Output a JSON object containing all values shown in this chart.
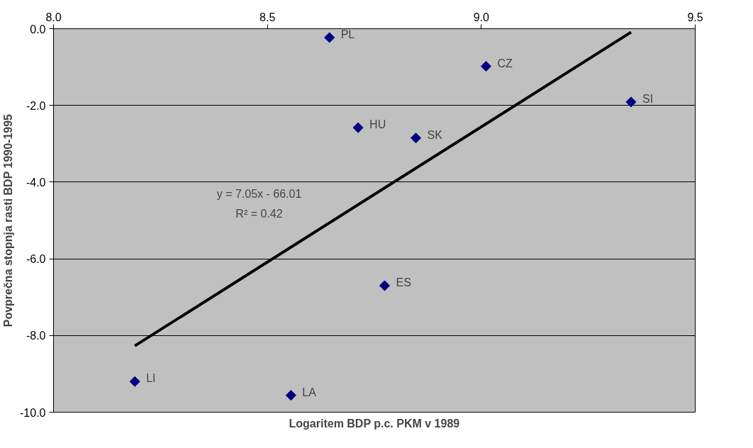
{
  "chart_data": {
    "type": "scatter",
    "xlabel": "Logaritem BDP p.c. PKM v 1989",
    "ylabel": "Povprečna stopnja rasti BDP 1990-1995",
    "xlim": [
      8.0,
      9.5
    ],
    "xticks": [
      {
        "value": 8.0,
        "label": "8.0"
      },
      {
        "value": 8.5,
        "label": "8.5"
      },
      {
        "value": 9.0,
        "label": "9.0"
      },
      {
        "value": 9.5,
        "label": "9.5"
      }
    ],
    "ylim": [
      -10.0,
      0.0
    ],
    "yticks": [
      {
        "value": -10,
        "label": "-10.0"
      },
      {
        "value": -8,
        "label": "-8.0"
      },
      {
        "value": -6,
        "label": "-6.0"
      },
      {
        "value": -4,
        "label": "-4.0"
      },
      {
        "value": -2,
        "label": "-2.0"
      },
      {
        "value": 0,
        "label": "0.0"
      }
    ],
    "grid": "y",
    "series": [
      {
        "color": "#000080",
        "marker": "diamond",
        "x": [
          8.645,
          9.011,
          9.35,
          8.712,
          8.847,
          8.774,
          8.19,
          8.555
        ],
        "values": [
          -0.23,
          -0.98,
          -1.91,
          -2.58,
          -2.85,
          -6.7,
          -9.2,
          -9.56
        ]
      },
      {
        "type": "line",
        "color": "#000000",
        "marker": "none",
        "x": [
          8.19,
          9.35
        ],
        "values": [
          -8.27,
          -0.09
        ]
      }
    ],
    "annotations": [
      {
        "text": "PL",
        "x": 8.645,
        "y": -0.23
      },
      {
        "text": "CZ",
        "x": 9.011,
        "y": -0.98
      },
      {
        "text": "SI",
        "x": 9.35,
        "y": -1.91
      },
      {
        "text": "HU",
        "x": 8.712,
        "y": -2.58
      },
      {
        "text": "SK",
        "x": 8.847,
        "y": -2.85
      },
      {
        "text": "ES",
        "x": 8.774,
        "y": -6.7
      },
      {
        "text": "LI",
        "x": 8.19,
        "y": -9.2
      },
      {
        "text": "LA",
        "x": 8.555,
        "y": -9.56
      },
      "y = 7.05x - 66.01",
      "R² = 0.42"
    ]
  }
}
